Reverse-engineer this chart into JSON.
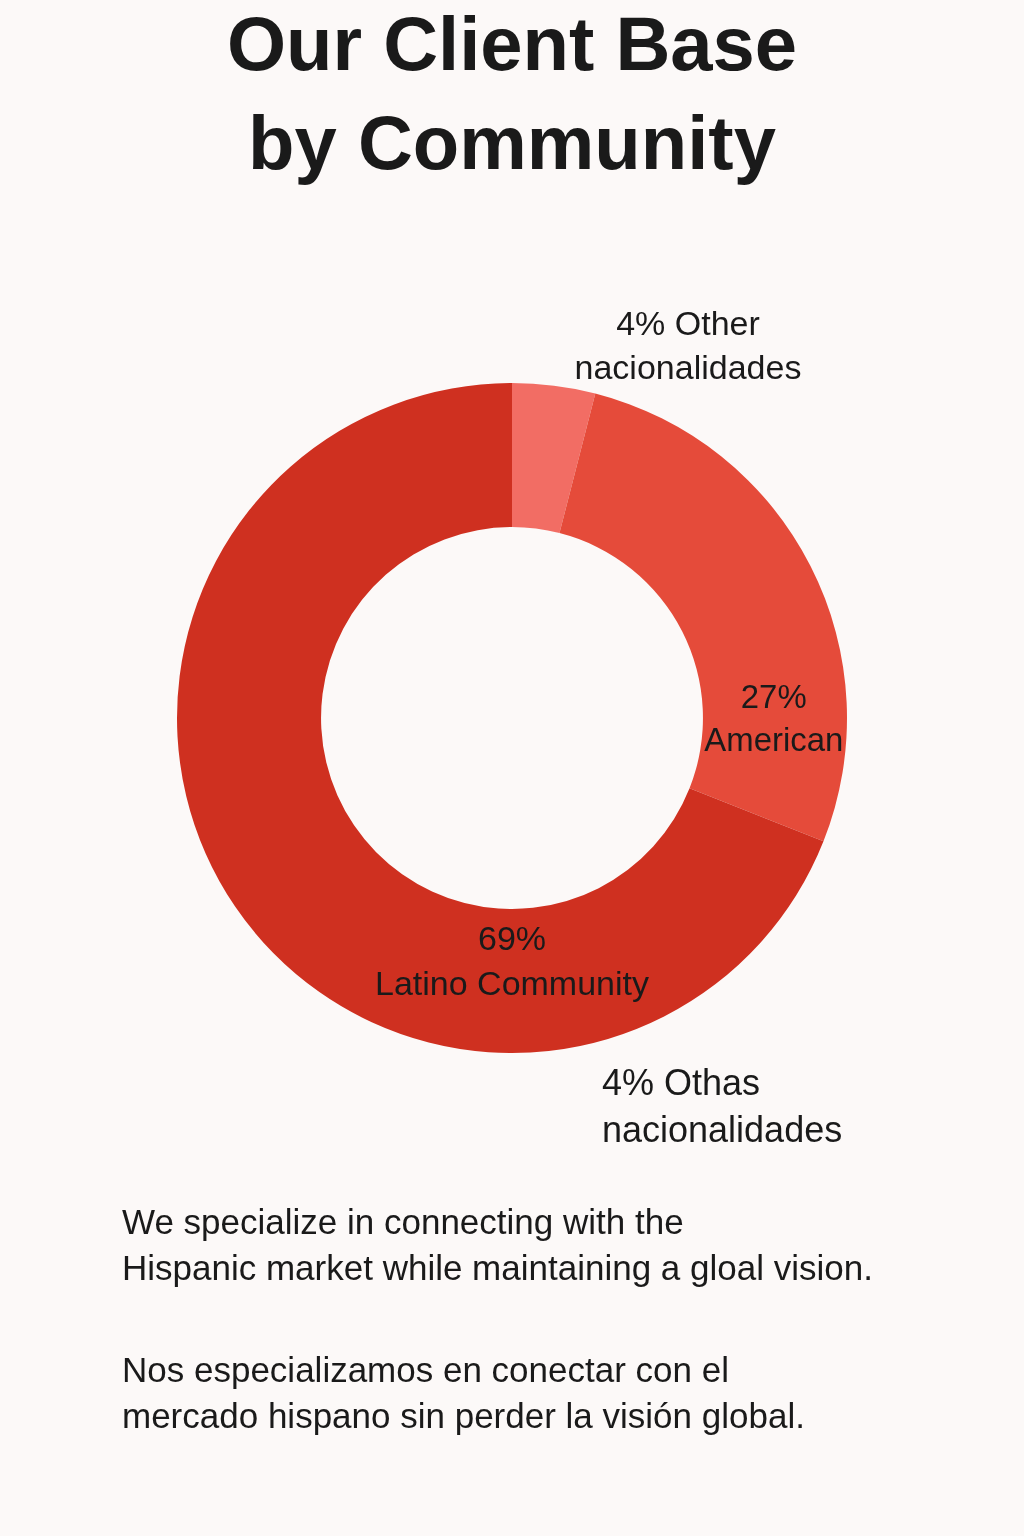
{
  "chart_data": {
    "type": "donut",
    "title": "Our Client Base\nby Community",
    "categories": [
      "Other nacionalidades",
      "American",
      "Latino Community"
    ],
    "values": [
      4,
      27,
      69
    ],
    "value_labels": [
      "4%",
      "27%",
      "69%"
    ],
    "colors": [
      "#f26d64",
      "#e54b3a",
      "#cf3020"
    ],
    "legend": false,
    "annotations": [
      "4% Othas\nnacionalidades",
      "We specialize in connecting with the\nHispanic market while maintaining a gloal vision.",
      "Nos especializamos en conectar con el\nmercado hispano sin perder la visión global."
    ]
  }
}
